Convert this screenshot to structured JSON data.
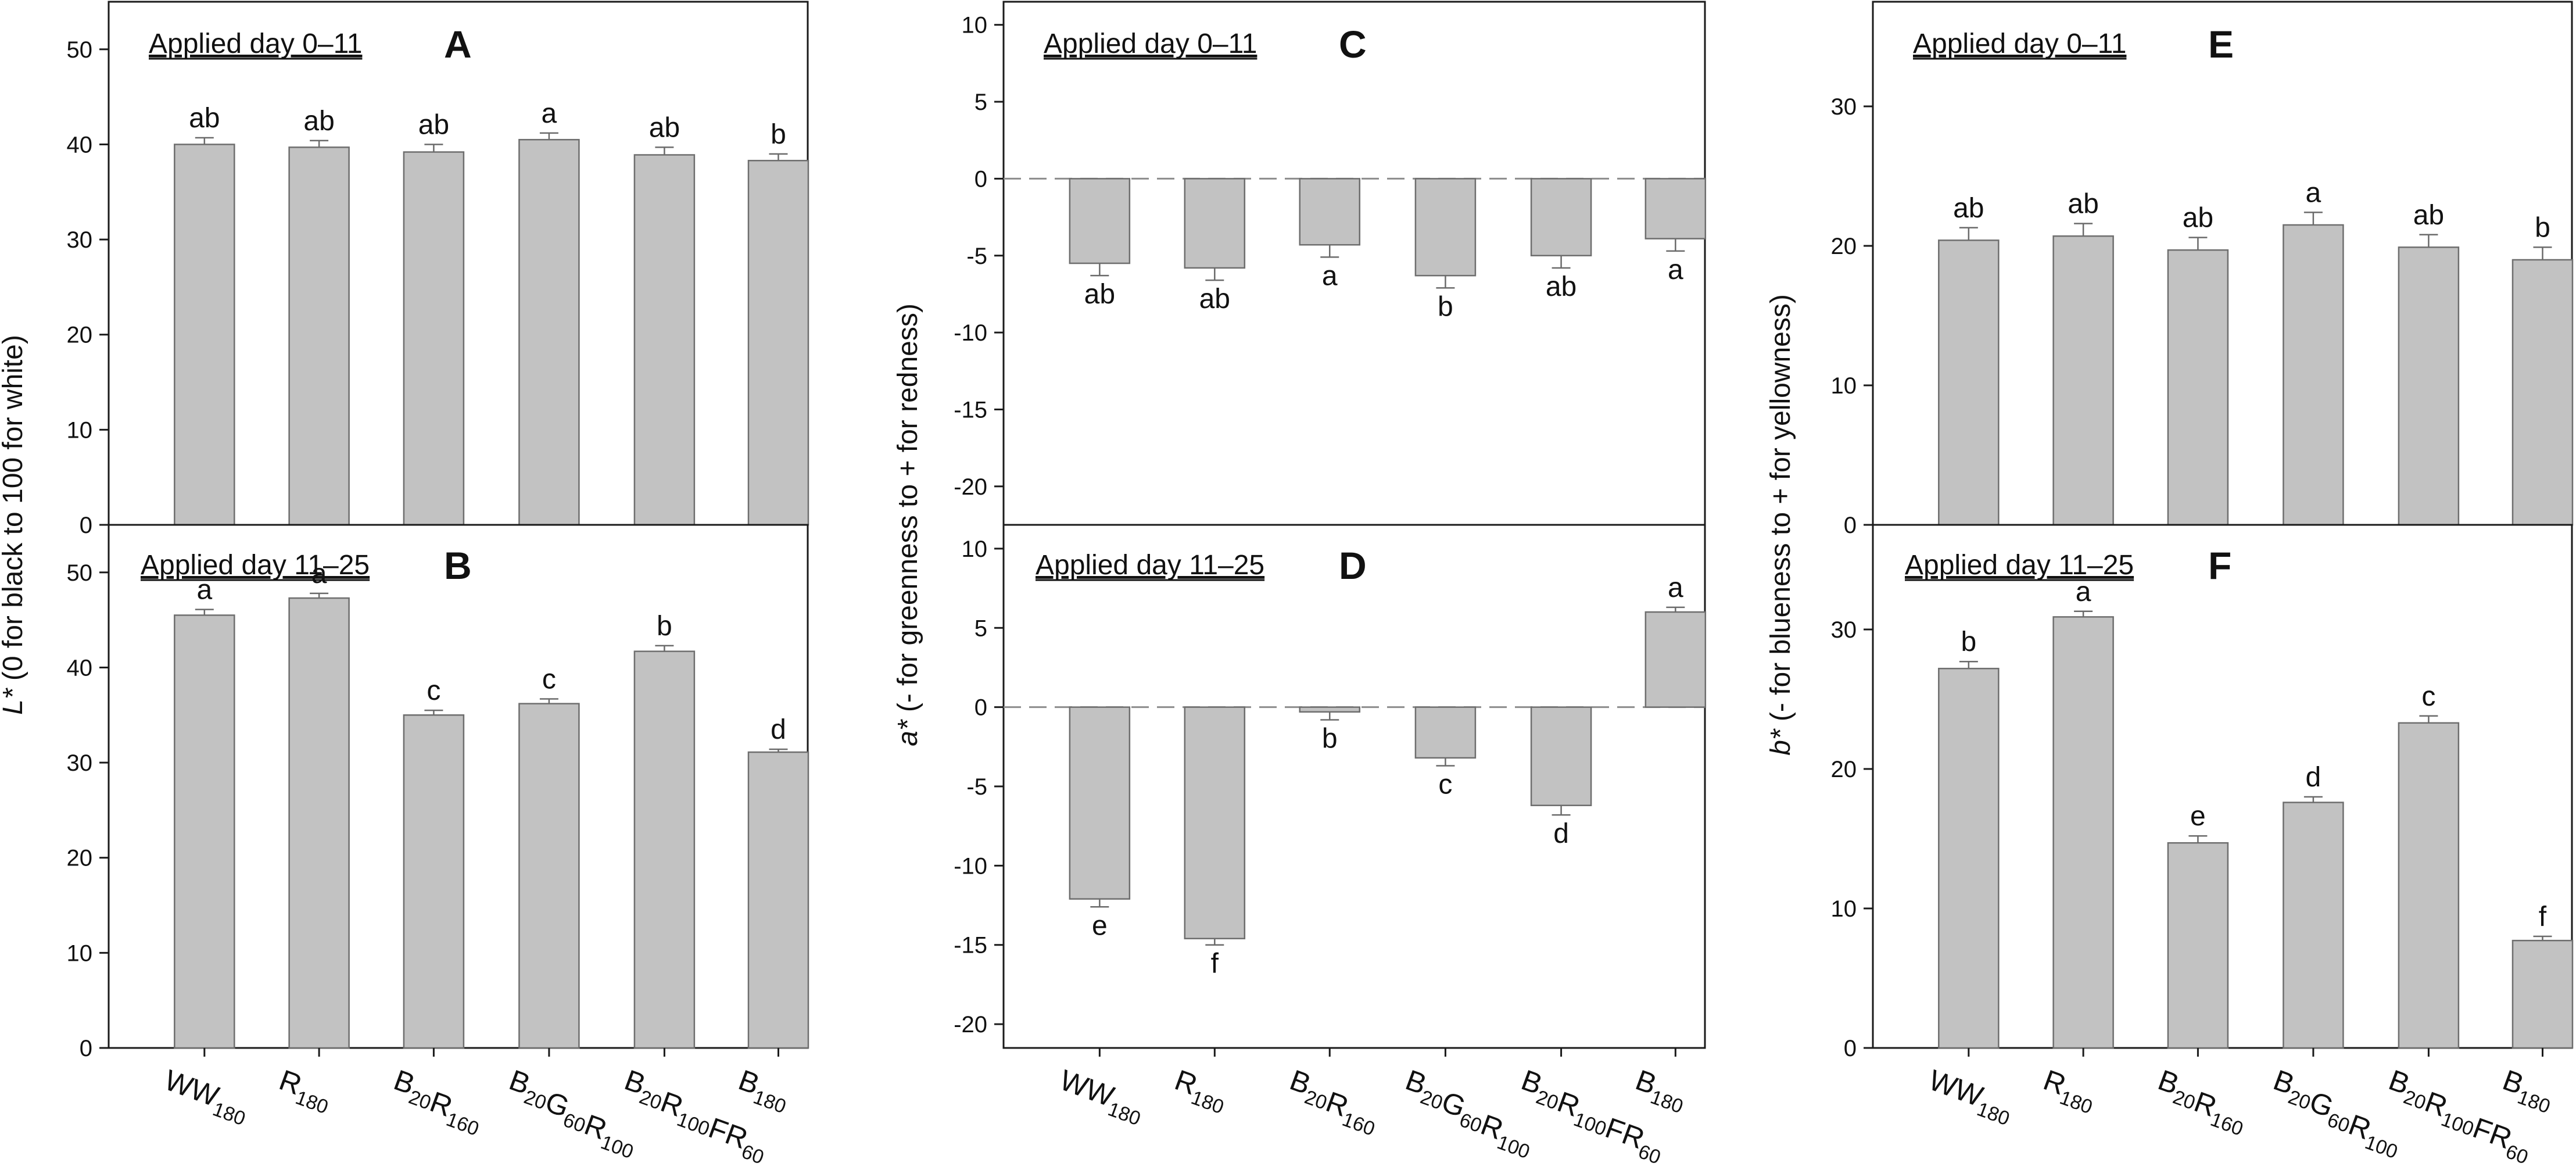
{
  "figure": {
    "x_ticks": [
      {
        "main": "WW",
        "sub": "180"
      },
      {
        "main": "R",
        "sub": "180"
      },
      {
        "main": "B",
        "sub": "20",
        "main2": "R",
        "sub2": "160"
      },
      {
        "main": "B",
        "sub": "20",
        "main2": "G",
        "sub2": "60",
        "main3": "R",
        "sub3": "100"
      },
      {
        "main": "B",
        "sub": "20",
        "main2": "R",
        "sub2": "100",
        "main3": "FR",
        "sub3": "60"
      },
      {
        "main": "B",
        "sub": "180"
      }
    ],
    "ylabels": [
      {
        "main": "L*",
        "rest": " (0 for black to 100 for white)"
      },
      {
        "main": "a*",
        "rest": " (- for greenness to + for redness)"
      },
      {
        "main": "b*",
        "rest": " (- for blueness to + for yellowness)"
      }
    ]
  },
  "chart_data": [
    {
      "type": "bar",
      "panel": "A",
      "title": "Applied day 0–11",
      "categories": [
        "WW180",
        "R180",
        "B20R160",
        "B20G60R100",
        "B20R100FR60",
        "B180"
      ],
      "values": [
        40.0,
        39.7,
        39.2,
        40.5,
        38.9,
        38.3
      ],
      "errors": [
        0.7,
        0.7,
        0.8,
        0.7,
        0.8,
        0.7
      ],
      "letters": [
        "ab",
        "ab",
        "ab",
        "a",
        "ab",
        "b"
      ],
      "ylim": [
        0,
        55
      ],
      "yticks": [
        "0",
        "10",
        "20",
        "30",
        "40",
        "50"
      ],
      "ylabel": "L* (0 for black to 100 for white)"
    },
    {
      "type": "bar",
      "panel": "B",
      "title": "Applied day 11–25",
      "categories": [
        "WW180",
        "R180",
        "B20R160",
        "B20G60R100",
        "B20R100FR60",
        "B180"
      ],
      "values": [
        45.5,
        47.3,
        35.0,
        36.2,
        41.7,
        31.1
      ],
      "errors": [
        0.6,
        0.5,
        0.5,
        0.5,
        0.6,
        0.3
      ],
      "letters": [
        "a",
        "a",
        "c",
        "c",
        "b",
        "d"
      ],
      "ylim": [
        0,
        55
      ],
      "yticks": [
        "0",
        "10",
        "20",
        "30",
        "40",
        "50"
      ],
      "ylabel": "L* (0 for black to 100 for white)"
    },
    {
      "type": "bar",
      "panel": "C",
      "title": "Applied day 0–11",
      "categories": [
        "WW180",
        "R180",
        "B20R160",
        "B20G60R100",
        "B20R100FR60",
        "B180"
      ],
      "values": [
        -5.5,
        -5.8,
        -4.3,
        -6.3,
        -5.0,
        -3.9
      ],
      "errors": [
        0.8,
        0.8,
        0.8,
        0.8,
        0.8,
        0.8
      ],
      "letters": [
        "ab",
        "ab",
        "a",
        "b",
        "ab",
        "a"
      ],
      "ylim": [
        -22.5,
        11.5
      ],
      "yticks": [
        "-20",
        "-15",
        "-10",
        "-5",
        "0",
        "5",
        "10"
      ],
      "ylabel": "a* (- for greenness to + for redness)"
    },
    {
      "type": "bar",
      "panel": "D",
      "title": "Applied day 11–25",
      "categories": [
        "WW180",
        "R180",
        "B20R160",
        "B20G60R100",
        "B20R100FR60",
        "B180"
      ],
      "values": [
        -12.1,
        -14.6,
        -0.3,
        -3.2,
        -6.2,
        6.0
      ],
      "errors": [
        0.5,
        0.4,
        0.5,
        0.5,
        0.6,
        0.3
      ],
      "letters": [
        "e",
        "f",
        "b",
        "c",
        "d",
        "a"
      ],
      "ylim": [
        -21.5,
        11.5
      ],
      "yticks": [
        "-20",
        "-15",
        "-10",
        "-5",
        "0",
        "5",
        "10"
      ],
      "ylabel": "a* (- for greenness to + for redness)"
    },
    {
      "type": "bar",
      "panel": "E",
      "title": "Applied day 0–11",
      "categories": [
        "WW180",
        "R180",
        "B20R160",
        "B20G60R100",
        "B20R100FR60",
        "B180"
      ],
      "values": [
        20.4,
        20.7,
        19.7,
        21.5,
        19.9,
        19.0
      ],
      "errors": [
        0.9,
        0.9,
        0.9,
        0.9,
        0.9,
        0.9
      ],
      "letters": [
        "ab",
        "ab",
        "ab",
        "a",
        "ab",
        "b"
      ],
      "ylim": [
        0,
        37.5
      ],
      "yticks": [
        "0",
        "10",
        "20",
        "30"
      ],
      "ylabel": "b* (- for blueness to + for yellowness)"
    },
    {
      "type": "bar",
      "panel": "F",
      "title": "Applied day 11–25",
      "categories": [
        "WW180",
        "R180",
        "B20R160",
        "B20G60R100",
        "B20R100FR60",
        "B180"
      ],
      "values": [
        27.2,
        30.9,
        14.7,
        17.6,
        23.3,
        7.7
      ],
      "errors": [
        0.5,
        0.4,
        0.5,
        0.4,
        0.5,
        0.3
      ],
      "letters": [
        "b",
        "a",
        "e",
        "d",
        "c",
        "f"
      ],
      "ylim": [
        0,
        37.5
      ],
      "yticks": [
        "0",
        "10",
        "20",
        "30"
      ],
      "ylabel": "b* (- for blueness to + for yellowness)"
    }
  ],
  "style": {
    "bar_fill": "#c2c2c2",
    "bar_stroke": "#6e6e6e",
    "axis": "#1a1a1a",
    "zero_line": "#8c8c8c",
    "error_bar": "#6a6a6a"
  }
}
